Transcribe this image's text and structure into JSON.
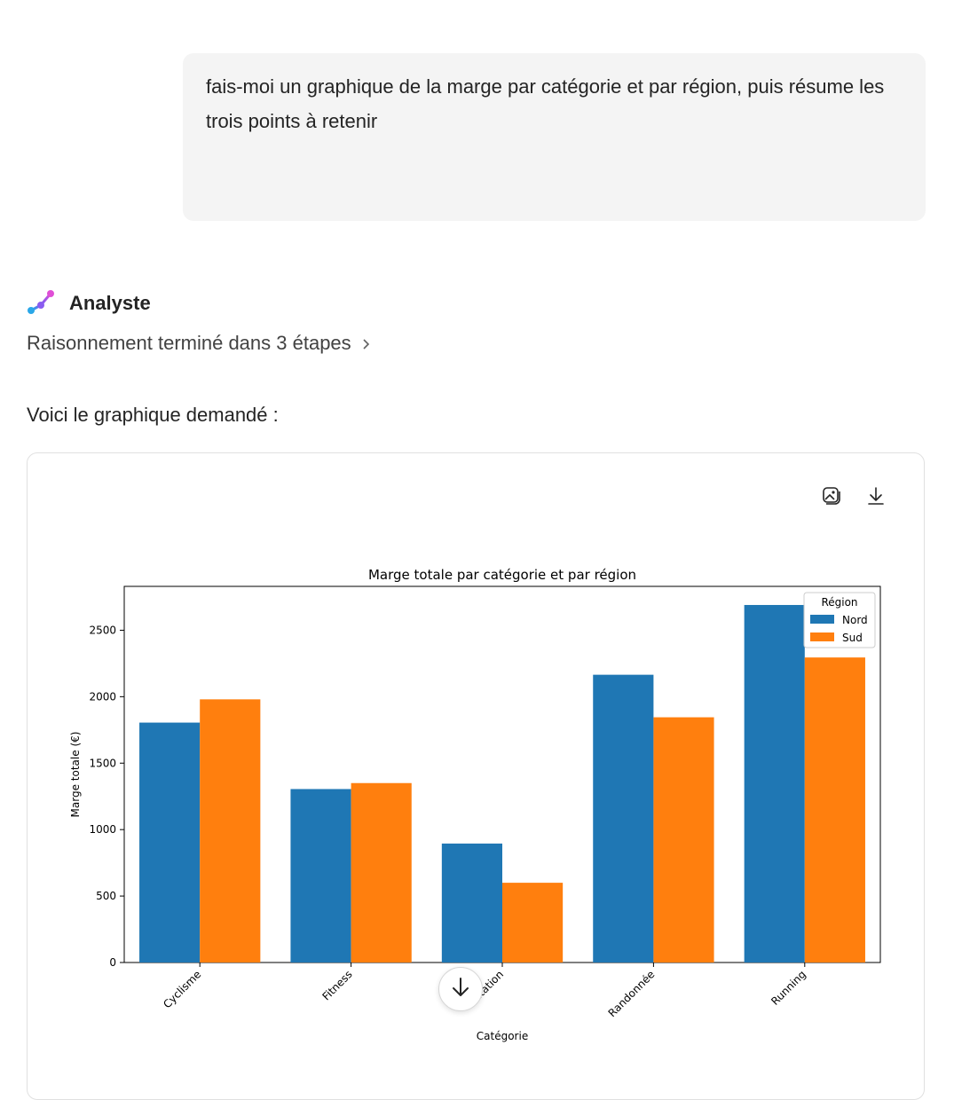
{
  "conversation": {
    "user_message": "fais-moi un graphique de la marge par catégorie et par région, puis résume les trois points à retenir",
    "agent": {
      "name": "Analyste",
      "reasoning_summary": "Raisonnement terminé dans 3 étapes",
      "intro_text": "Voici le graphique demandé :"
    }
  },
  "icons": {
    "agent_logo": "analyst-logo-icon",
    "reasoning_expand": "chevron-right-icon",
    "image_tool": "image-icon",
    "download_tool": "download-icon",
    "scroll": "arrow-down-icon"
  },
  "chart_data": {
    "type": "bar",
    "title": "Marge totale par catégorie et par région",
    "xlabel": "Catégorie",
    "ylabel": "Marge totale (€)",
    "categories": [
      "Cyclisme",
      "Fitness",
      "Natation",
      "Randonnée",
      "Running"
    ],
    "series": [
      {
        "name": "Nord",
        "color": "#1f77b4",
        "values": [
          1805,
          1305,
          895,
          2165,
          2690
        ]
      },
      {
        "name": "Sud",
        "color": "#ff7f0e",
        "values": [
          1980,
          1350,
          600,
          1845,
          2295
        ]
      }
    ],
    "ylim": [
      0,
      2830
    ],
    "yticks": [
      0,
      500,
      1000,
      1500,
      2000,
      2500
    ],
    "legend": {
      "title": "Région",
      "placement": "top-right"
    },
    "grid": false
  }
}
